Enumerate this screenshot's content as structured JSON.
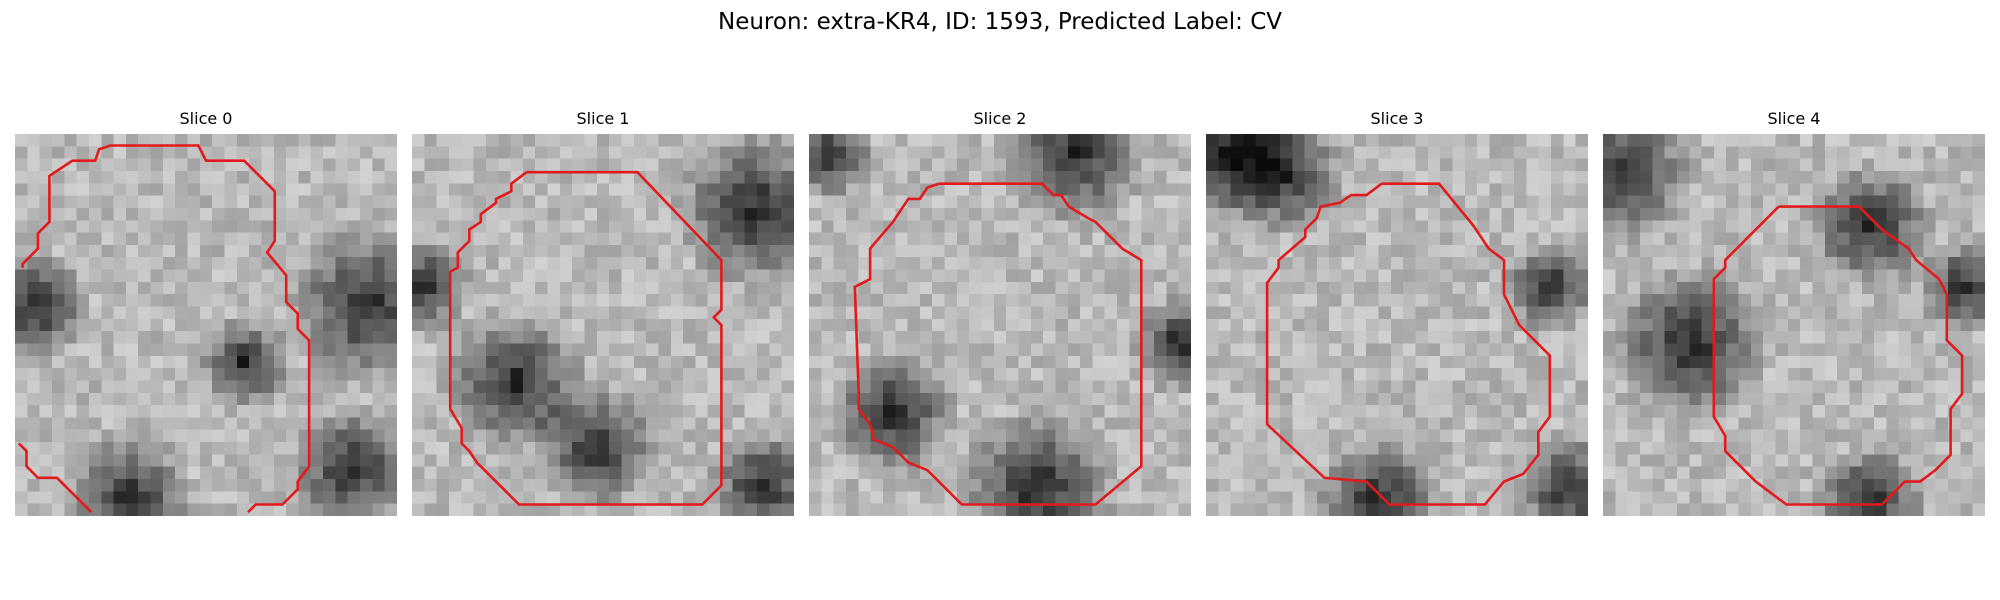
{
  "figure": {
    "title": "Neuron: extra-KR4, ID: 1593, Predicted Label: CV"
  },
  "panels": [
    {
      "title": "Slice 0",
      "contour_color": "#e31a1c",
      "contour_segments": [
        [
          [
            0.02,
            0.35
          ],
          [
            0.02,
            0.34
          ],
          [
            0.06,
            0.3
          ],
          [
            0.06,
            0.26
          ],
          [
            0.09,
            0.23
          ],
          [
            0.09,
            0.11
          ],
          [
            0.15,
            0.07
          ],
          [
            0.21,
            0.07
          ],
          [
            0.22,
            0.04
          ],
          [
            0.25,
            0.03
          ],
          [
            0.48,
            0.03
          ],
          [
            0.5,
            0.07
          ],
          [
            0.6,
            0.07
          ],
          [
            0.68,
            0.15
          ],
          [
            0.68,
            0.28
          ],
          [
            0.66,
            0.31
          ],
          [
            0.71,
            0.37
          ],
          [
            0.71,
            0.44
          ],
          [
            0.74,
            0.47
          ],
          [
            0.74,
            0.51
          ],
          [
            0.77,
            0.54
          ],
          [
            0.77,
            0.87
          ],
          [
            0.74,
            0.91
          ],
          [
            0.74,
            0.93
          ],
          [
            0.7,
            0.97
          ],
          [
            0.63,
            0.97
          ],
          [
            0.61,
            0.99
          ]
        ],
        [
          [
            0.2,
            0.99
          ],
          [
            0.11,
            0.9
          ],
          [
            0.06,
            0.9
          ],
          [
            0.03,
            0.87
          ],
          [
            0.03,
            0.83
          ],
          [
            0.01,
            0.81
          ]
        ]
      ]
    },
    {
      "title": "Slice 1",
      "contour_color": "#e31a1c",
      "contour_segments": [
        [
          [
            0.3,
            0.1
          ],
          [
            0.59,
            0.1
          ],
          [
            0.81,
            0.33
          ],
          [
            0.81,
            0.46
          ],
          [
            0.79,
            0.48
          ],
          [
            0.81,
            0.5
          ],
          [
            0.81,
            0.92
          ],
          [
            0.76,
            0.97
          ],
          [
            0.28,
            0.97
          ],
          [
            0.17,
            0.86
          ],
          [
            0.15,
            0.83
          ],
          [
            0.13,
            0.81
          ],
          [
            0.13,
            0.77
          ],
          [
            0.1,
            0.72
          ],
          [
            0.1,
            0.36
          ],
          [
            0.12,
            0.35
          ],
          [
            0.12,
            0.31
          ],
          [
            0.15,
            0.28
          ],
          [
            0.15,
            0.25
          ],
          [
            0.18,
            0.23
          ],
          [
            0.18,
            0.21
          ],
          [
            0.22,
            0.18
          ],
          [
            0.22,
            0.17
          ],
          [
            0.26,
            0.15
          ],
          [
            0.26,
            0.13
          ],
          [
            0.3,
            0.1
          ]
        ]
      ]
    },
    {
      "title": "Slice 2",
      "contour_color": "#e31a1c",
      "contour_segments": [
        [
          [
            0.34,
            0.13
          ],
          [
            0.61,
            0.13
          ],
          [
            0.64,
            0.16
          ],
          [
            0.66,
            0.16
          ],
          [
            0.68,
            0.19
          ],
          [
            0.73,
            0.22
          ],
          [
            0.75,
            0.23
          ],
          [
            0.79,
            0.27
          ],
          [
            0.82,
            0.3
          ],
          [
            0.87,
            0.33
          ],
          [
            0.87,
            0.87
          ],
          [
            0.75,
            0.97
          ],
          [
            0.4,
            0.97
          ],
          [
            0.31,
            0.88
          ],
          [
            0.26,
            0.86
          ],
          [
            0.22,
            0.82
          ],
          [
            0.17,
            0.8
          ],
          [
            0.16,
            0.76
          ],
          [
            0.13,
            0.72
          ],
          [
            0.13,
            0.68
          ],
          [
            0.12,
            0.4
          ],
          [
            0.16,
            0.38
          ],
          [
            0.16,
            0.3
          ],
          [
            0.22,
            0.23
          ],
          [
            0.26,
            0.17
          ],
          [
            0.29,
            0.17
          ],
          [
            0.31,
            0.14
          ],
          [
            0.34,
            0.13
          ]
        ]
      ]
    },
    {
      "title": "Slice 3",
      "contour_color": "#e31a1c",
      "contour_segments": [
        [
          [
            0.46,
            0.13
          ],
          [
            0.61,
            0.13
          ],
          [
            0.7,
            0.24
          ],
          [
            0.74,
            0.3
          ],
          [
            0.78,
            0.33
          ],
          [
            0.78,
            0.42
          ],
          [
            0.82,
            0.5
          ],
          [
            0.87,
            0.55
          ],
          [
            0.9,
            0.58
          ],
          [
            0.9,
            0.74
          ],
          [
            0.87,
            0.78
          ],
          [
            0.87,
            0.84
          ],
          [
            0.83,
            0.89
          ],
          [
            0.78,
            0.91
          ],
          [
            0.73,
            0.97
          ],
          [
            0.48,
            0.97
          ],
          [
            0.42,
            0.91
          ],
          [
            0.31,
            0.9
          ],
          [
            0.16,
            0.76
          ],
          [
            0.16,
            0.39
          ],
          [
            0.19,
            0.35
          ],
          [
            0.19,
            0.33
          ],
          [
            0.26,
            0.27
          ],
          [
            0.26,
            0.25
          ],
          [
            0.29,
            0.22
          ],
          [
            0.3,
            0.19
          ],
          [
            0.35,
            0.18
          ],
          [
            0.38,
            0.16
          ],
          [
            0.42,
            0.16
          ],
          [
            0.46,
            0.13
          ]
        ]
      ]
    },
    {
      "title": "Slice 4",
      "contour_color": "#e31a1c",
      "contour_segments": [
        [
          [
            0.46,
            0.19
          ],
          [
            0.67,
            0.19
          ],
          [
            0.7,
            0.22
          ],
          [
            0.73,
            0.25
          ],
          [
            0.8,
            0.3
          ],
          [
            0.82,
            0.33
          ],
          [
            0.88,
            0.38
          ],
          [
            0.9,
            0.42
          ],
          [
            0.9,
            0.54
          ],
          [
            0.94,
            0.58
          ],
          [
            0.94,
            0.68
          ],
          [
            0.91,
            0.72
          ],
          [
            0.91,
            0.84
          ],
          [
            0.87,
            0.88
          ],
          [
            0.83,
            0.91
          ],
          [
            0.79,
            0.91
          ],
          [
            0.73,
            0.97
          ],
          [
            0.48,
            0.97
          ],
          [
            0.4,
            0.91
          ],
          [
            0.32,
            0.83
          ],
          [
            0.32,
            0.79
          ],
          [
            0.29,
            0.74
          ],
          [
            0.29,
            0.38
          ],
          [
            0.32,
            0.35
          ],
          [
            0.32,
            0.33
          ],
          [
            0.4,
            0.25
          ],
          [
            0.46,
            0.19
          ]
        ]
      ]
    }
  ]
}
